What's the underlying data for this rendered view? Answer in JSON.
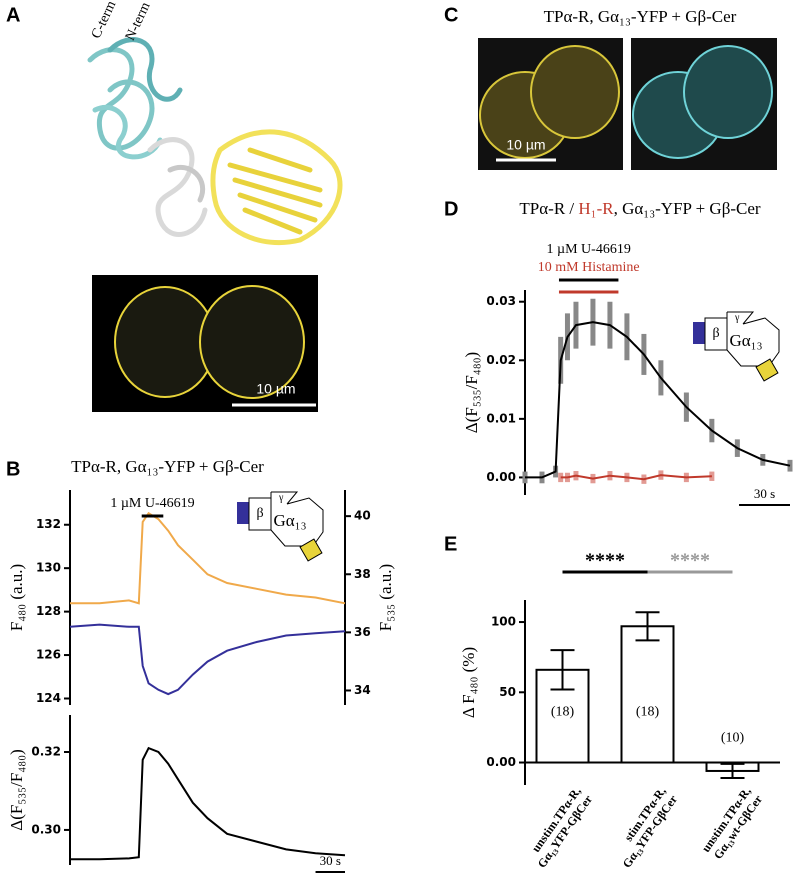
{
  "panel_labels": [
    "A",
    "B",
    "C",
    "D",
    "E"
  ],
  "panel_a": {
    "c_term": "C-term",
    "n_term": "N-term",
    "scale": "10 µm"
  },
  "panel_c": {
    "title": "TPα-R, Gα₁₃-YFP + Gβ-Cer",
    "scale": "10 µm"
  },
  "schematic": {
    "beta": "β",
    "gamma": "γ",
    "alpha": "Gα₁₃"
  },
  "chart_data": [
    {
      "type": "line",
      "title": "TPα-R, Gα₁₃-YFP + Gβ-Cer",
      "x": [
        0,
        30,
        60,
        70,
        74,
        80,
        90,
        100,
        110,
        125,
        140,
        160,
        190,
        220,
        250,
        280
      ],
      "xlim": [
        0,
        280
      ],
      "ylim": [
        123.7,
        133.6
      ],
      "yticks": [
        124,
        126,
        128,
        130,
        132
      ],
      "ylabel": "F₄₈₀ (a.u.)",
      "y2lim": [
        33.5,
        40.9
      ],
      "y2ticks": [
        34,
        36,
        38,
        40
      ],
      "y2label": "F₅₃₅ (a.u.)",
      "series": [
        {
          "color": "#f0a94a",
          "axis": "y2",
          "values": [
            37.0,
            37.0,
            37.1,
            37.0,
            39.8,
            40.1,
            39.9,
            39.5,
            39.0,
            38.5,
            38.0,
            37.7,
            37.5,
            37.3,
            37.2,
            37.0
          ]
        },
        {
          "color": "#34309a",
          "values": [
            127.3,
            127.4,
            127.3,
            127.3,
            125.5,
            124.7,
            124.4,
            124.2,
            124.4,
            125.1,
            125.7,
            126.2,
            126.6,
            126.9,
            127.0,
            127.1
          ]
        }
      ],
      "annotations": [
        {
          "text": "1 µM U-46619",
          "color": "#000000",
          "from": 73,
          "to": 95
        }
      ]
    },
    {
      "type": "line",
      "x": [
        0,
        30,
        60,
        70,
        74,
        80,
        90,
        100,
        110,
        125,
        140,
        160,
        190,
        220,
        250,
        280
      ],
      "xlim": [
        0,
        280
      ],
      "ylim": [
        0.291,
        0.3295
      ],
      "yticks": [
        {
          "value": 0.3,
          "label": "0.30"
        },
        0.32
      ],
      "ylabel": "Δ(F₅₃₅/F₄₈₀)",
      "series": [
        {
          "color": "#000000",
          "values": [
            0.2925,
            0.2925,
            0.2927,
            0.293,
            0.318,
            0.321,
            0.32,
            0.317,
            0.313,
            0.307,
            0.303,
            0.299,
            0.297,
            0.295,
            0.294,
            0.2935
          ]
        }
      ],
      "scalebar": {
        "text": "30 s",
        "length": 30
      }
    },
    {
      "type": "line",
      "title_parts": [
        {
          "text": "TPα-R / ",
          "color": "#000000"
        },
        {
          "text": "H₁-R",
          "color": "#c0392b"
        },
        {
          "text": ", Gα₁₃-YFP + Gβ-Cer",
          "color": "#000000"
        }
      ],
      "x": [
        0,
        10,
        18,
        21,
        25,
        30,
        40,
        50,
        60,
        70,
        80,
        95,
        110,
        125,
        140,
        156
      ],
      "xlim": [
        0,
        156
      ],
      "ylim": [
        -0.003,
        0.032
      ],
      "yticks": [
        {
          "value": 0,
          "label": "0.00"
        },
        0.01,
        0.02,
        0.03
      ],
      "ylabel": "Δ(F₅₃₅/F₄₈₀)",
      "series": [
        {
          "color": "#000000",
          "error_color": "#888888",
          "values": [
            0,
            0,
            0.001,
            0.02,
            0.024,
            0.026,
            0.0265,
            0.026,
            0.024,
            0.021,
            0.017,
            0.012,
            0.008,
            0.005,
            0.003,
            0.002
          ],
          "errors": [
            0.001,
            0.001,
            0.001,
            0.004,
            0.004,
            0.004,
            0.004,
            0.004,
            0.004,
            0.0035,
            0.003,
            0.0025,
            0.002,
            0.0015,
            0.001,
            0.001
          ]
        },
        {
          "color": "#c0392b",
          "error_color": "#e29a93",
          "values": [
            null,
            null,
            null,
            0,
            0,
            0.0003,
            -0.0002,
            0.0003,
            0,
            -0.0003,
            0.0004,
            0,
            0.0002,
            null,
            null,
            null
          ],
          "errors": [
            null,
            null,
            null,
            0.0008,
            0.0008,
            0.0008,
            0.0008,
            0.0008,
            0.0008,
            0.0008,
            0.0008,
            0.0008,
            0.0008,
            null,
            null,
            null
          ]
        }
      ],
      "annotations": [
        {
          "text": "1 µM U-46619",
          "color": "#000000",
          "from": 20,
          "to": 55
        },
        {
          "text": "10 mM Histamine",
          "color": "#c0392b",
          "from": 20,
          "to": 55
        }
      ],
      "scalebar": {
        "text": "30 s",
        "length": 30
      }
    },
    {
      "type": "bar",
      "categories": [
        [
          "unstim.TPα-R,",
          "Gα₁₃YFP-GβCer"
        ],
        [
          "stim.TPα-R,",
          "Gα₁₃YFP-GβCer"
        ],
        [
          "unstim.TPα-R,",
          "Gα₁₃wt-GβCer"
        ]
      ],
      "values": [
        66,
        97,
        -6
      ],
      "errors": [
        14,
        10,
        5
      ],
      "n_labels": [
        "(18)",
        "(18)",
        "(10)"
      ],
      "color": "#ffffff",
      "ylim": [
        -16,
        115.7
      ],
      "yticks": [
        {
          "value": 0,
          "label": "0.00"
        },
        50,
        100
      ],
      "ylabel": "Δ F₄₈₀ (%)",
      "significance": [
        {
          "text": "****",
          "from": 0,
          "to": 1,
          "color": "#000000"
        },
        {
          "text": "****",
          "from": 1,
          "to": 2,
          "color": "#999999"
        }
      ]
    }
  ]
}
